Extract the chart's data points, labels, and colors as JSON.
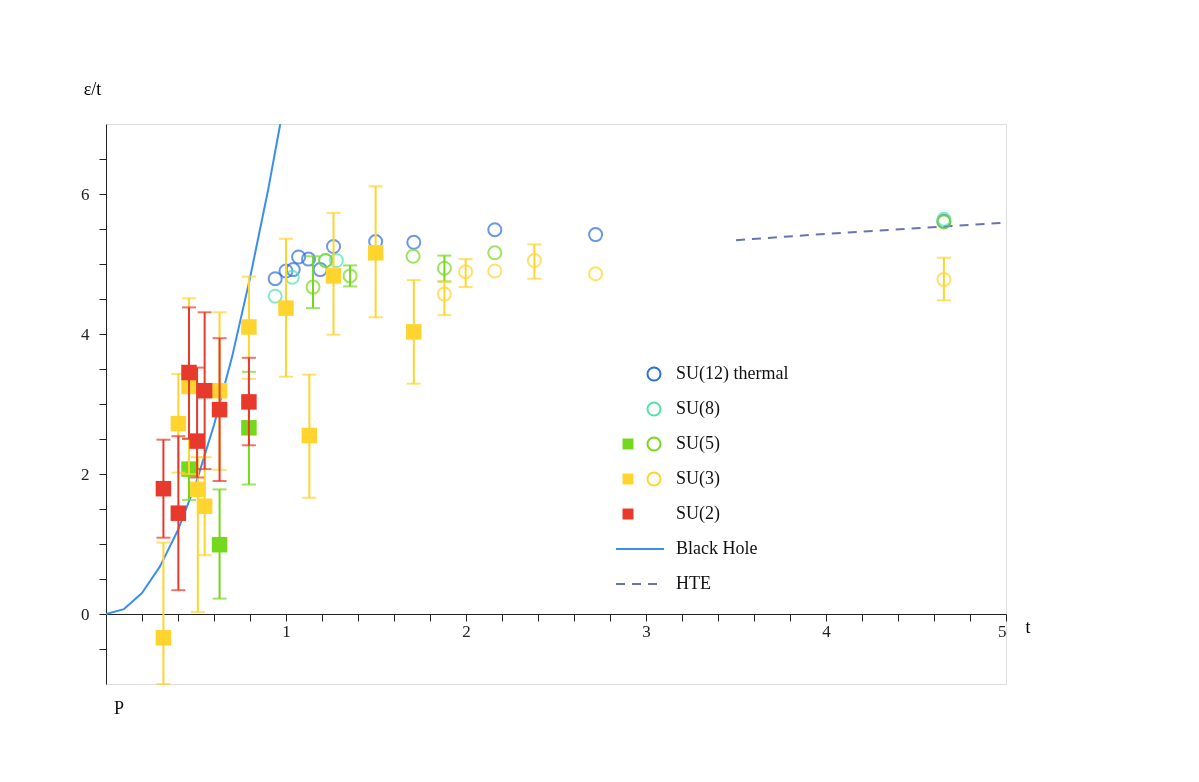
{
  "chart_data": {
    "type": "scatter",
    "xlabel": "t",
    "ylabel": "ε/t",
    "xlim": [
      0,
      5
    ],
    "ylim": [
      -1,
      7
    ],
    "xticks": [
      {
        "value": 0,
        "label": null
      },
      {
        "value": 0.2,
        "label": null
      },
      {
        "value": 0.4,
        "label": null
      },
      {
        "value": 0.6,
        "label": null
      },
      {
        "value": 0.8,
        "label": null
      },
      1,
      {
        "value": 1.2,
        "label": null
      },
      {
        "value": 1.4,
        "label": null
      },
      {
        "value": 1.6,
        "label": null
      },
      {
        "value": 1.8,
        "label": null
      },
      2,
      {
        "value": 2.2,
        "label": null
      },
      {
        "value": 2.4,
        "label": null
      },
      {
        "value": 2.6,
        "label": null
      },
      {
        "value": 2.8,
        "label": null
      },
      3,
      {
        "value": 3.2,
        "label": null
      },
      {
        "value": 3.4,
        "label": null
      },
      {
        "value": 3.6,
        "label": null
      },
      {
        "value": 3.8,
        "label": null
      },
      4,
      {
        "value": 4.2,
        "label": null
      },
      {
        "value": 4.4,
        "label": null
      },
      {
        "value": 4.6,
        "label": null
      },
      {
        "value": 4.8,
        "label": null
      },
      5
    ],
    "yticks": [
      {
        "value": -0.5,
        "label": null
      },
      0,
      {
        "value": 0.5,
        "label": null
      },
      {
        "value": 1,
        "label": null
      },
      {
        "value": 1.5,
        "label": null
      },
      2,
      {
        "value": 2.5,
        "label": null
      },
      {
        "value": 3,
        "label": null
      },
      {
        "value": 3.5,
        "label": null
      },
      4,
      {
        "value": 4.5,
        "label": null
      },
      {
        "value": 5,
        "label": null
      },
      {
        "value": 5.5,
        "label": null
      },
      6,
      {
        "value": 6.5,
        "label": null
      }
    ],
    "grid": false,
    "legend": "bottom right",
    "annotations": [
      "P"
    ],
    "series": [
      {
        "name": "SU(12) thermal",
        "marker": "circle",
        "color": "#2a6fdc",
        "x": [
          0.94,
          1.0,
          1.04,
          1.07,
          1.125,
          1.19,
          1.264,
          1.498,
          1.71,
          2.16,
          2.72,
          4.655
        ],
        "values": [
          4.79,
          4.9,
          4.92,
          5.1,
          5.07,
          4.92,
          5.25,
          5.32,
          5.31,
          5.49,
          5.42,
          5.61
        ]
      },
      {
        "name": "SU(8)",
        "marker": "circle",
        "color": "#4fe3a7",
        "x": [
          0.94,
          1.035,
          1.22,
          1.28,
          4.655
        ],
        "values": [
          4.54,
          4.81,
          5.05,
          5.05,
          5.64
        ]
      },
      {
        "name": "SU(5)",
        "marker": "circle",
        "color": "#74d91c",
        "x": [
          1.15,
          1.22,
          1.356,
          1.706,
          1.88,
          2.16,
          4.655
        ],
        "values": [
          4.67,
          5.05,
          4.83,
          5.11,
          4.94,
          5.16,
          5.6
        ],
        "errors": [
          [
            4.37,
            5.11
          ],
          null,
          [
            4.68,
            4.98
          ],
          null,
          [
            4.75,
            5.12
          ],
          null,
          null
        ]
      },
      {
        "name": "SU(3)",
        "marker": "circle",
        "color": "#ffd42e",
        "x": [
          1.88,
          1.998,
          2.16,
          2.38,
          2.72,
          4.655
        ],
        "values": [
          4.57,
          4.89,
          4.9,
          5.05,
          4.86,
          4.78
        ],
        "errors": [
          [
            4.27,
            4.75
          ],
          [
            4.67,
            5.07
          ],
          null,
          [
            4.79,
            5.28
          ],
          null,
          [
            4.48,
            5.09
          ]
        ]
      },
      {
        "marker": "square",
        "color": "#74d91c",
        "x": [
          0.461,
          0.631,
          0.794
        ],
        "values": [
          2.07,
          0.99,
          2.66
        ],
        "errors": [
          [
            1.63,
            2.51
          ],
          [
            0.22,
            1.78
          ],
          [
            1.85,
            3.46
          ]
        ]
      },
      {
        "marker": "square",
        "color": "#ffd42e",
        "x": [
          0.319,
          0.402,
          0.461,
          0.51,
          0.548,
          0.631,
          0.794,
          1.0,
          1.13,
          1.264,
          1.498,
          1.71
        ],
        "values": [
          -0.34,
          2.72,
          3.25,
          1.78,
          1.54,
          3.19,
          4.1,
          4.37,
          2.55,
          4.83,
          5.16,
          4.03
        ],
        "errors": [
          [
            -1,
            1.02
          ],
          [
            2.02,
            3.43
          ],
          [
            2.0,
            4.51
          ],
          [
            0.03,
            2.24
          ],
          [
            0.84,
            2.24
          ],
          [
            2.06,
            4.31
          ],
          [
            3.36,
            4.82
          ],
          [
            3.39,
            5.36
          ],
          [
            1.66,
            3.42
          ],
          [
            3.99,
            5.73
          ],
          [
            4.24,
            6.11
          ],
          [
            3.29,
            4.77
          ]
        ]
      },
      {
        "name": "SU(2)",
        "marker": "square",
        "color": "#e83a2c",
        "x": [
          0.319,
          0.402,
          0.461,
          0.506,
          0.548,
          0.631,
          0.794
        ],
        "values": [
          1.79,
          1.44,
          3.45,
          2.47,
          3.19,
          2.92,
          3.03
        ],
        "errors": [
          [
            1.09,
            2.49
          ],
          [
            0.34,
            2.54
          ],
          [
            2.5,
            4.38
          ],
          [
            1.95,
            3.52
          ],
          [
            2.07,
            4.31
          ],
          [
            1.9,
            3.94
          ],
          [
            2.41,
            3.66
          ]
        ]
      },
      {
        "name": "Black Hole",
        "type": "line",
        "color": "#3a8ef2",
        "line_style": "solid",
        "x": [
          0,
          0.1,
          0.2,
          0.3,
          0.4,
          0.5,
          0.6,
          0.7,
          0.8,
          0.9,
          0.968
        ],
        "values": [
          0,
          0.07,
          0.3,
          0.68,
          1.2,
          1.87,
          2.7,
          3.67,
          4.8,
          6.05,
          7.0
        ]
      },
      {
        "name": "HTE",
        "type": "line",
        "color": "#6c72b0",
        "line_style": "dashed",
        "x": [
          3.5,
          4,
          4.5,
          5
        ],
        "values": [
          5.34,
          5.43,
          5.51,
          5.59
        ]
      }
    ]
  }
}
